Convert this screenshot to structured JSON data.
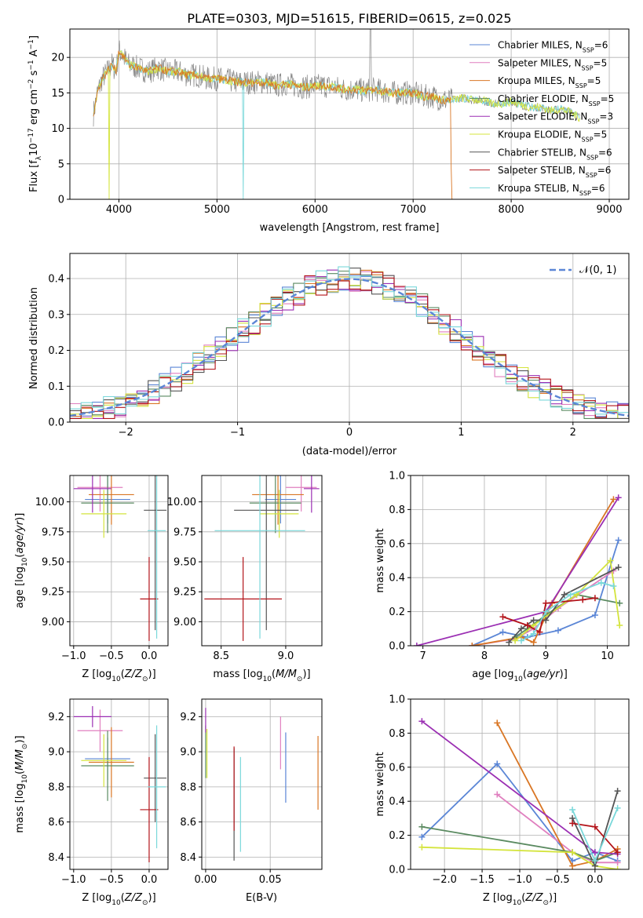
{
  "figure_title": "PLATE=0303, MJD=51615, FIBERID=0615, z=0.025",
  "colors": {
    "Chabrier MILES": "#5b86d6",
    "Salpeter MILES": "#e07fbf",
    "Kroupa MILES": "#d97624",
    "Chabrier ELODIE": "#5a8a60",
    "Salpeter ELODIE": "#9b2fb3",
    "Kroupa ELODIE": "#d4e43c",
    "Chabrier STELIB": "#555555",
    "Salpeter STELIB": "#b3141a",
    "Kroupa STELIB": "#7ad8da",
    "normal": "#5b86d6"
  },
  "chart_data": [
    {
      "id": "spectrum",
      "type": "line",
      "xlabel": "wavelength [Angstrom, rest frame]",
      "ylabel": "Flux [f_λ10^-17 erg cm^-2 s^-1 A^-1]",
      "xlim": [
        3500,
        9200
      ],
      "ylim": [
        0,
        24
      ],
      "xticks": [
        4000,
        5000,
        6000,
        7000,
        8000,
        9000
      ],
      "yticks": [
        0,
        5,
        10,
        15,
        20
      ],
      "legend_position": "upper right",
      "legend": [
        {
          "label": "Chabrier MILES, N",
          "sub": "SSP",
          "tail": "=6"
        },
        {
          "label": "Salpeter MILES, N",
          "sub": "SSP",
          "tail": "=5"
        },
        {
          "label": "Kroupa MILES, N",
          "sub": "SSP",
          "tail": "=5"
        },
        {
          "label": "Chabrier ELODIE, N",
          "sub": "SSP",
          "tail": "=5"
        },
        {
          "label": "Salpeter ELODIE, N",
          "sub": "SSP",
          "tail": "=3"
        },
        {
          "label": "Kroupa ELODIE, N",
          "sub": "SSP",
          "tail": "=5"
        },
        {
          "label": "Chabrier STELIB, N",
          "sub": "SSP",
          "tail": "=6"
        },
        {
          "label": "Salpeter STELIB, N",
          "sub": "SSP",
          "tail": "=6"
        },
        {
          "label": "Kroupa STELIB, N",
          "sub": "SSP",
          "tail": "=6"
        }
      ],
      "data_line": {
        "x": [
          3740,
          3780,
          3830,
          3880,
          3930,
          3970,
          4000,
          4050,
          4100,
          4200,
          4300,
          4400,
          4500,
          4600,
          4700,
          4800,
          4900,
          5000,
          5100,
          5200,
          5300,
          5400,
          5500,
          5600,
          5700,
          5800,
          5900,
          6000,
          6100,
          6200,
          6300,
          6400,
          6500,
          6600,
          6700,
          6800,
          6900,
          7000,
          7100,
          7200,
          7300,
          7400,
          7500,
          7600,
          7700,
          7800,
          7900,
          8000,
          8100,
          8200,
          8300,
          8400,
          8500,
          8600,
          8700
        ],
        "y": [
          12,
          15,
          17,
          18,
          19,
          18,
          21,
          20,
          19,
          18.5,
          18,
          18.5,
          18,
          18,
          17.5,
          17.5,
          17,
          17,
          16.8,
          16.5,
          16.5,
          16.5,
          16.5,
          16,
          16.3,
          16,
          15.8,
          16,
          16,
          15.8,
          15.5,
          15.5,
          15.3,
          15.5,
          15.2,
          15,
          15,
          15,
          14.5,
          14.5,
          14,
          14,
          14.3,
          14,
          14,
          13.5,
          13.5,
          13.8,
          13.3,
          13,
          13,
          12.5,
          12.7,
          12.3,
          11.5
        ]
      }
    },
    {
      "id": "residual-histogram",
      "type": "line",
      "xlabel": "(data-model)/error",
      "ylabel": "Normed distribution",
      "xlim": [
        -2.5,
        2.5
      ],
      "ylim": [
        0,
        0.47
      ],
      "xticks": [
        -2,
        -1,
        0,
        1,
        2
      ],
      "yticks": [
        0.0,
        0.1,
        0.2,
        0.3,
        0.4
      ],
      "legend_position": "upper right",
      "legend_label": "𝒩(0, 1)",
      "bin_width": 0.1
    },
    {
      "id": "age-vs-Z",
      "type": "scatter",
      "xlabel": "Z [log10(Z/Z⊙)]",
      "ylabel": "age [log10(age/yr)]",
      "xlim": [
        -1.05,
        0.25
      ],
      "ylim": [
        8.8,
        10.22
      ],
      "xticks": [
        -1.0,
        -0.5,
        0.0
      ],
      "yticks": [
        9.0,
        9.25,
        9.5,
        9.75,
        10.0
      ],
      "points": [
        {
          "series": "Chabrier MILES",
          "x": -0.55,
          "xerr": 0.3,
          "y": 10.02,
          "yerr": 0.2
        },
        {
          "series": "Salpeter MILES",
          "x": -0.65,
          "xerr": 0.3,
          "y": 10.12,
          "yerr": 0.2
        },
        {
          "series": "Kroupa MILES",
          "x": -0.5,
          "xerr": 0.3,
          "y": 10.06,
          "yerr": 0.25
        },
        {
          "series": "Chabrier ELODIE",
          "x": -0.55,
          "xerr": 0.35,
          "y": 9.99,
          "yerr": 0.25
        },
        {
          "series": "Salpeter ELODIE",
          "x": -0.75,
          "xerr": 0.25,
          "y": 10.11,
          "yerr": 0.2
        },
        {
          "series": "Kroupa ELODIE",
          "x": -0.6,
          "xerr": 0.3,
          "y": 9.9,
          "yerr": 0.2
        },
        {
          "series": "Chabrier STELIB",
          "x": 0.08,
          "xerr": 0.15,
          "y": 9.93,
          "yerr": 1.0
        },
        {
          "series": "Salpeter STELIB",
          "x": 0.0,
          "xerr": 0.12,
          "y": 9.19,
          "yerr": 0.35
        },
        {
          "series": "Kroupa STELIB",
          "x": 0.1,
          "xerr": 0.12,
          "y": 9.76,
          "yerr": 0.9
        }
      ]
    },
    {
      "id": "age-vs-mass",
      "type": "scatter",
      "xlabel": "mass [log10(M/M⊙)]",
      "ylabel": "",
      "xlim": [
        8.35,
        9.28
      ],
      "ylim": [
        8.8,
        10.22
      ],
      "xticks": [
        8.5,
        9.0
      ],
      "yticks": [
        9.0,
        9.25,
        9.5,
        9.75,
        10.0
      ],
      "points": [
        {
          "series": "Chabrier MILES",
          "x": 8.96,
          "xerr": 0.12,
          "y": 10.02,
          "yerr": 0.2
        },
        {
          "series": "Salpeter MILES",
          "x": 9.12,
          "xerr": 0.12,
          "y": 10.12,
          "yerr": 0.2
        },
        {
          "series": "Kroupa MILES",
          "x": 8.94,
          "xerr": 0.2,
          "y": 10.06,
          "yerr": 0.25
        },
        {
          "series": "Chabrier ELODIE",
          "x": 8.92,
          "xerr": 0.2,
          "y": 9.99,
          "yerr": 0.25
        },
        {
          "series": "Salpeter ELODIE",
          "x": 9.2,
          "xerr": 0.06,
          "y": 10.11,
          "yerr": 0.2
        },
        {
          "series": "Kroupa ELODIE",
          "x": 8.95,
          "xerr": 0.15,
          "y": 9.9,
          "yerr": 0.2
        },
        {
          "series": "Chabrier STELIB",
          "x": 8.85,
          "xerr": 0.25,
          "y": 9.93,
          "yerr": 1.0
        },
        {
          "series": "Salpeter STELIB",
          "x": 8.67,
          "xerr": 0.3,
          "y": 9.19,
          "yerr": 0.35
        },
        {
          "series": "Kroupa STELIB",
          "x": 8.8,
          "xerr": 0.35,
          "y": 9.76,
          "yerr": 0.9
        }
      ]
    },
    {
      "id": "mass-weight-vs-age",
      "type": "line",
      "xlabel": "age [log10(age/yr)]",
      "ylabel": "mass weight",
      "xlim": [
        6.8,
        10.35
      ],
      "ylim": [
        0,
        1.0
      ],
      "xticks": [
        7,
        8,
        9,
        10
      ],
      "yticks": [
        0.0,
        0.2,
        0.4,
        0.6,
        0.8,
        1.0
      ],
      "series": [
        {
          "name": "Chabrier MILES",
          "x": [
            7.8,
            8.3,
            8.7,
            9.2,
            9.8,
            10.18
          ],
          "y": [
            0.0,
            0.08,
            0.05,
            0.09,
            0.18,
            0.62
          ]
        },
        {
          "name": "Salpeter MILES",
          "x": [
            7.8,
            8.5,
            8.8,
            9.2,
            10.1
          ],
          "y": [
            0.0,
            0.04,
            0.1,
            0.22,
            0.44
          ]
        },
        {
          "name": "Kroupa MILES",
          "x": [
            7.8,
            8.6,
            8.8,
            9.1,
            10.1
          ],
          "y": [
            0.0,
            0.05,
            0.02,
            0.25,
            0.86
          ]
        },
        {
          "name": "Chabrier ELODIE",
          "x": [
            8.5,
            8.7,
            9.0,
            9.5,
            10.2
          ],
          "y": [
            0.05,
            0.1,
            0.18,
            0.3,
            0.25
          ]
        },
        {
          "name": "Salpeter ELODIE",
          "x": [
            6.9,
            9.0,
            10.18
          ],
          "y": [
            0.0,
            0.2,
            0.87
          ]
        },
        {
          "name": "Kroupa ELODIE",
          "x": [
            8.5,
            8.8,
            9.5,
            10.05,
            10.2
          ],
          "y": [
            0.03,
            0.12,
            0.3,
            0.5,
            0.12
          ]
        },
        {
          "name": "Chabrier STELIB",
          "x": [
            8.4,
            8.6,
            8.8,
            9.0,
            9.3,
            10.18
          ],
          "y": [
            0.02,
            0.1,
            0.15,
            0.15,
            0.3,
            0.46
          ]
        },
        {
          "name": "Salpeter STELIB",
          "x": [
            8.3,
            8.7,
            8.9,
            9.0,
            9.6,
            9.8
          ],
          "y": [
            0.17,
            0.12,
            0.08,
            0.25,
            0.27,
            0.28
          ]
        },
        {
          "name": "Kroupa STELIB",
          "x": [
            8.6,
            8.8,
            9.0,
            9.4,
            9.9,
            10.1
          ],
          "y": [
            0.03,
            0.07,
            0.2,
            0.3,
            0.37,
            0.35
          ]
        }
      ]
    },
    {
      "id": "mass-vs-Z",
      "type": "scatter",
      "xlabel": "Z [log10(Z/Z⊙)]",
      "ylabel": "mass [log10(M/M⊙)]",
      "xlim": [
        -1.05,
        0.25
      ],
      "ylim": [
        8.33,
        9.3
      ],
      "xticks": [
        -1.0,
        -0.5,
        0.0
      ],
      "yticks": [
        8.4,
        8.6,
        8.8,
        9.0,
        9.2
      ],
      "points": [
        {
          "series": "Chabrier MILES",
          "x": -0.55,
          "xerr": 0.3,
          "y": 8.96,
          "yerr": 0.12
        },
        {
          "series": "Salpeter MILES",
          "x": -0.65,
          "xerr": 0.3,
          "y": 9.12,
          "yerr": 0.12
        },
        {
          "series": "Kroupa MILES",
          "x": -0.5,
          "xerr": 0.3,
          "y": 8.94,
          "yerr": 0.2
        },
        {
          "series": "Chabrier ELODIE",
          "x": -0.55,
          "xerr": 0.35,
          "y": 8.92,
          "yerr": 0.2
        },
        {
          "series": "Salpeter ELODIE",
          "x": -0.75,
          "xerr": 0.25,
          "y": 9.2,
          "yerr": 0.06
        },
        {
          "series": "Kroupa ELODIE",
          "x": -0.6,
          "xerr": 0.3,
          "y": 8.95,
          "yerr": 0.15
        },
        {
          "series": "Chabrier STELIB",
          "x": 0.08,
          "xerr": 0.15,
          "y": 8.85,
          "yerr": 0.25
        },
        {
          "series": "Salpeter STELIB",
          "x": 0.0,
          "xerr": 0.12,
          "y": 8.67,
          "yerr": 0.3
        },
        {
          "series": "Kroupa STELIB",
          "x": 0.1,
          "xerr": 0.12,
          "y": 8.8,
          "yerr": 0.35
        }
      ]
    },
    {
      "id": "mass-vs-ebv",
      "type": "scatter",
      "xlabel": "E(B-V)",
      "ylabel": "",
      "xlim": [
        -0.003,
        0.09
      ],
      "ylim": [
        8.33,
        9.3
      ],
      "xticks": [
        0.0,
        0.05
      ],
      "yticks": [
        8.4,
        8.6,
        8.8,
        9.0,
        9.2
      ],
      "points": [
        {
          "series": "Chabrier MILES",
          "x": 0.062,
          "y": 8.91,
          "yerr": 0.2
        },
        {
          "series": "Salpeter MILES",
          "x": 0.058,
          "y": 9.05,
          "yerr": 0.15
        },
        {
          "series": "Kroupa MILES",
          "x": 0.087,
          "y": 8.88,
          "yerr": 0.21
        },
        {
          "series": "Chabrier ELODIE",
          "x": 0.0,
          "y": 9.0,
          "yerr": 0.15
        },
        {
          "series": "Salpeter ELODIE",
          "x": 0.0,
          "y": 9.18,
          "yerr": 0.07
        },
        {
          "series": "Kroupa ELODIE",
          "x": 0.001,
          "y": 8.99,
          "yerr": 0.14
        },
        {
          "series": "Chabrier STELIB",
          "x": 0.022,
          "y": 8.7,
          "yerr": 0.32
        },
        {
          "series": "Salpeter STELIB",
          "x": 0.022,
          "y": 8.79,
          "yerr": 0.24
        },
        {
          "series": "Kroupa STELIB",
          "x": 0.027,
          "y": 8.7,
          "yerr": 0.27
        }
      ]
    },
    {
      "id": "mass-weight-vs-Z",
      "type": "line",
      "xlabel": "Z [log10(Z/Z⊙)]",
      "ylabel": "mass weight",
      "xlim": [
        -2.45,
        0.45
      ],
      "ylim": [
        0,
        1.0
      ],
      "xticks": [
        -2.0,
        -1.5,
        -1.0,
        -0.5,
        0.0
      ],
      "yticks": [
        0.0,
        0.2,
        0.4,
        0.6,
        0.8,
        1.0
      ],
      "series": [
        {
          "name": "Chabrier MILES",
          "x": [
            -2.3,
            -1.3,
            -0.3,
            0.0,
            0.3
          ],
          "y": [
            0.19,
            0.62,
            0.05,
            0.1,
            0.05
          ]
        },
        {
          "name": "Salpeter MILES",
          "x": [
            -1.3,
            -0.3,
            0.0,
            0.3
          ],
          "y": [
            0.44,
            0.1,
            0.04,
            0.04
          ]
        },
        {
          "name": "Kroupa MILES",
          "x": [
            -1.3,
            -0.3,
            0.0,
            0.3
          ],
          "y": [
            0.86,
            0.02,
            0.05,
            0.12
          ]
        },
        {
          "name": "Chabrier ELODIE",
          "x": [
            -2.3,
            -0.3,
            0.0,
            0.3
          ],
          "y": [
            0.25,
            0.1,
            0.05,
            0.1
          ]
        },
        {
          "name": "Salpeter ELODIE",
          "x": [
            -2.3,
            0.0,
            0.3
          ],
          "y": [
            0.87,
            0.1,
            0.09
          ]
        },
        {
          "name": "Kroupa ELODIE",
          "x": [
            -2.3,
            -0.3,
            0.0,
            0.3
          ],
          "y": [
            0.13,
            0.1,
            0.02,
            0.0
          ]
        },
        {
          "name": "Chabrier STELIB",
          "x": [
            -0.3,
            0.0,
            0.3
          ],
          "y": [
            0.3,
            0.02,
            0.46
          ]
        },
        {
          "name": "Salpeter STELIB",
          "x": [
            -0.3,
            0.0,
            0.3
          ],
          "y": [
            0.27,
            0.25,
            0.1
          ]
        },
        {
          "name": "Kroupa STELIB",
          "x": [
            -0.3,
            0.0,
            0.3
          ],
          "y": [
            0.35,
            0.05,
            0.36
          ]
        }
      ]
    }
  ]
}
